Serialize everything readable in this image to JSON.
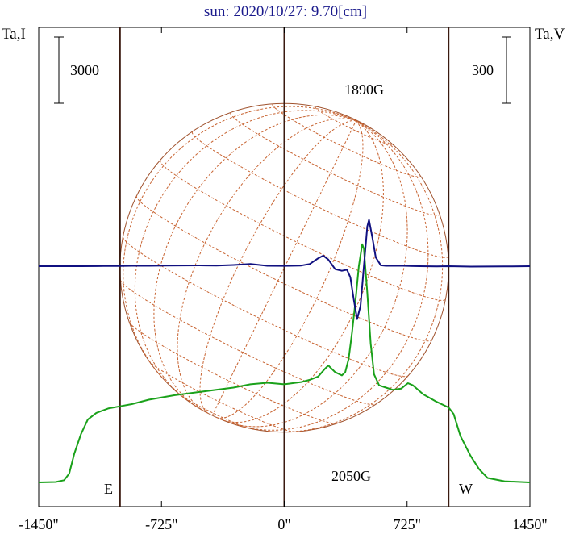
{
  "chart_data": {
    "type": "line",
    "title": "sun: 2020/10/27: 9.70[cm]",
    "left_axis_label": "Ta,I",
    "right_axis_label": "Ta,V",
    "left_scale_label": "3000",
    "right_scale_label": "300",
    "xlim": [
      -1450,
      1450
    ],
    "ticks": [
      {
        "value": -1450,
        "label": "-1450\""
      },
      {
        "value": -725,
        "label": "-725\""
      },
      {
        "value": 0,
        "label": "0\""
      },
      {
        "value": 725,
        "label": "725\""
      },
      {
        "value": 1450,
        "label": "1450\""
      }
    ],
    "limb_lines": [
      -970,
      0,
      970
    ],
    "solar_radius_arcsec": 970,
    "limb_labels": {
      "east": "E",
      "west": "W"
    },
    "annotations": [
      {
        "text": "1890G",
        "x": 530,
        "y": 2050
      },
      {
        "text": "2050G",
        "x": 430,
        "y": -2050
      }
    ],
    "series": [
      {
        "name": "I",
        "color": "#1aa11a",
        "axis": "left",
        "points": [
          [
            -1450,
            0
          ],
          [
            -1350,
            20
          ],
          [
            -1300,
            100
          ],
          [
            -1270,
            400
          ],
          [
            -1240,
            1300
          ],
          [
            -1200,
            2200
          ],
          [
            -1160,
            2850
          ],
          [
            -1110,
            3150
          ],
          [
            -1040,
            3350
          ],
          [
            -970,
            3450
          ],
          [
            -900,
            3550
          ],
          [
            -800,
            3750
          ],
          [
            -650,
            3950
          ],
          [
            -500,
            4100
          ],
          [
            -300,
            4300
          ],
          [
            -200,
            4450
          ],
          [
            -100,
            4520
          ],
          [
            0,
            4450
          ],
          [
            100,
            4550
          ],
          [
            150,
            4650
          ],
          [
            200,
            4800
          ],
          [
            240,
            5150
          ],
          [
            260,
            5300
          ],
          [
            300,
            5000
          ],
          [
            340,
            4850
          ],
          [
            360,
            5000
          ],
          [
            380,
            5600
          ],
          [
            400,
            6800
          ],
          [
            420,
            8200
          ],
          [
            440,
            9800
          ],
          [
            460,
            10800
          ],
          [
            470,
            10600
          ],
          [
            490,
            8600
          ],
          [
            510,
            6300
          ],
          [
            530,
            4900
          ],
          [
            560,
            4400
          ],
          [
            600,
            4300
          ],
          [
            640,
            4200
          ],
          [
            690,
            4250
          ],
          [
            730,
            4500
          ],
          [
            760,
            4400
          ],
          [
            820,
            4000
          ],
          [
            900,
            3650
          ],
          [
            970,
            3400
          ],
          [
            1000,
            3100
          ],
          [
            1040,
            2100
          ],
          [
            1100,
            1200
          ],
          [
            1150,
            600
          ],
          [
            1200,
            200
          ],
          [
            1300,
            50
          ],
          [
            1450,
            0
          ]
        ]
      },
      {
        "name": "V",
        "color": "#101080",
        "axis": "right",
        "points": [
          [
            -1450,
            0
          ],
          [
            -1350,
            0
          ],
          [
            -1200,
            0
          ],
          [
            -1100,
            5
          ],
          [
            -1050,
            15
          ],
          [
            -970,
            10
          ],
          [
            -900,
            20
          ],
          [
            -800,
            20
          ],
          [
            -700,
            30
          ],
          [
            -500,
            35
          ],
          [
            -400,
            25
          ],
          [
            -300,
            55
          ],
          [
            -200,
            100
          ],
          [
            -150,
            60
          ],
          [
            -100,
            20
          ],
          [
            0,
            15
          ],
          [
            100,
            30
          ],
          [
            150,
            100
          ],
          [
            200,
            360
          ],
          [
            230,
            480
          ],
          [
            260,
            300
          ],
          [
            300,
            -130
          ],
          [
            340,
            -210
          ],
          [
            370,
            -160
          ],
          [
            390,
            -500
          ],
          [
            410,
            -1500
          ],
          [
            430,
            -2400
          ],
          [
            450,
            -1800
          ],
          [
            470,
            0
          ],
          [
            490,
            1800
          ],
          [
            500,
            2100
          ],
          [
            520,
            1300
          ],
          [
            540,
            400
          ],
          [
            570,
            40
          ],
          [
            600,
            20
          ],
          [
            700,
            20
          ],
          [
            800,
            0
          ],
          [
            900,
            -10
          ],
          [
            970,
            0
          ],
          [
            1100,
            -20
          ],
          [
            1300,
            -10
          ],
          [
            1450,
            0
          ]
        ]
      }
    ]
  }
}
